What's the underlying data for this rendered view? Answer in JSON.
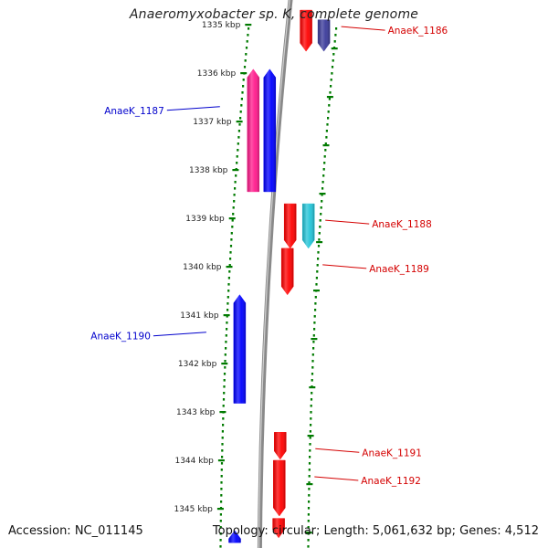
{
  "title": "Anaeromyxobacter sp. K, complete genome",
  "footer": {
    "accession": "Accession: NC_011145",
    "summary": "Topology: circular; Length: 5,061,632 bp; Genes: 4,512"
  },
  "colors": {
    "plus_strand_gene": "#ff0000",
    "minus_strand_gene": "#0000ff",
    "pink_gene": "#ff1a8c",
    "cyan_gene": "#22c4d8",
    "navy_gene": "#3a3a9a",
    "label_red": "#d40000",
    "label_blue": "#0000cc",
    "tick_green": "#007a00",
    "backbone": "#8a8a8a"
  },
  "scale": {
    "unit": "kbp",
    "ticks": [
      {
        "kbp": 1335,
        "label": "1335 kbp"
      },
      {
        "kbp": 1336,
        "label": "1336 kbp"
      },
      {
        "kbp": 1337,
        "label": "1337 kbp"
      },
      {
        "kbp": 1338,
        "label": "1338 kbp"
      },
      {
        "kbp": 1339,
        "label": "1339 kbp"
      },
      {
        "kbp": 1340,
        "label": "1340 kbp"
      },
      {
        "kbp": 1341,
        "label": "1341 kbp"
      },
      {
        "kbp": 1342,
        "label": "1342 kbp"
      },
      {
        "kbp": 1343,
        "label": "1343 kbp"
      },
      {
        "kbp": 1344,
        "label": "1344 kbp"
      },
      {
        "kbp": 1345,
        "label": "1345 kbp"
      }
    ]
  },
  "genes": [
    {
      "label": "AnaeK_1186",
      "strand": "+",
      "start_kbp": 1334.7,
      "end_kbp": 1335.55,
      "color": "#ff0000",
      "side": "right"
    },
    {
      "label": "",
      "strand": "+",
      "start_kbp": 1334.9,
      "end_kbp": 1335.55,
      "color": "#3a3a9a",
      "side": "right"
    },
    {
      "label": "AnaeK_1187",
      "strand": "-",
      "start_kbp": 1335.92,
      "end_kbp": 1338.45,
      "color": "#ff1a8c",
      "side": "left"
    },
    {
      "label": "",
      "strand": "-",
      "start_kbp": 1335.92,
      "end_kbp": 1338.45,
      "color": "#0000ff",
      "side": "left"
    },
    {
      "label": "AnaeK_1188",
      "strand": "+",
      "start_kbp": 1338.7,
      "end_kbp": 1339.62,
      "color": "#ff0000",
      "side": "right"
    },
    {
      "label": "",
      "strand": "+",
      "start_kbp": 1338.7,
      "end_kbp": 1339.62,
      "color": "#22c4d8",
      "side": "right"
    },
    {
      "label": "AnaeK_1189",
      "strand": "+",
      "start_kbp": 1339.62,
      "end_kbp": 1340.58,
      "color": "#ff0000",
      "side": "right"
    },
    {
      "label": "AnaeK_1190",
      "strand": "-",
      "start_kbp": 1340.58,
      "end_kbp": 1342.82,
      "color": "#0000ff",
      "side": "left"
    },
    {
      "label": "AnaeK_1191",
      "strand": "+",
      "start_kbp": 1343.42,
      "end_kbp": 1343.98,
      "color": "#ff0000",
      "side": "right"
    },
    {
      "label": "AnaeK_1192",
      "strand": "+",
      "start_kbp": 1344.0,
      "end_kbp": 1345.15,
      "color": "#ff0000",
      "side": "right"
    },
    {
      "label": "",
      "strand": "+",
      "start_kbp": 1345.2,
      "end_kbp": 1345.6,
      "color": "#ff0000",
      "side": "right"
    },
    {
      "label": "",
      "strand": "-",
      "start_kbp": 1345.45,
      "end_kbp": 1345.7,
      "color": "#0000ff",
      "side": "left"
    }
  ]
}
